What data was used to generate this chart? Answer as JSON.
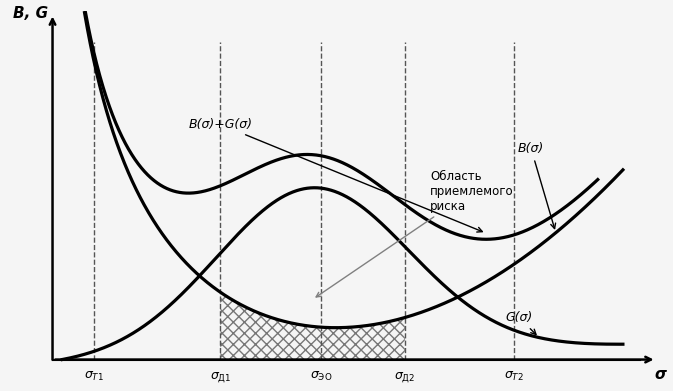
{
  "background_color": "#f5f5f5",
  "sigma_T1": 1.5,
  "sigma_D1": 3.0,
  "sigma_EO": 4.2,
  "sigma_D2": 5.2,
  "sigma_T2": 6.5,
  "x_min": 0.8,
  "x_max": 8.0,
  "y_min": 0.0,
  "y_max": 5.5,
  "label_B_sigma": "B(σ)",
  "label_G_sigma": "G(σ)",
  "label_BG_sigma": "B(σ)+G(σ)",
  "label_area": "Область\nприемлемого\nриска",
  "ylabel": "B, G",
  "xlabel": "σ",
  "line_color": "#000000",
  "hatch_color": "#777777",
  "dashed_color": "#555555",
  "axis_origin_x": 1.0,
  "axis_origin_y": 0.0
}
